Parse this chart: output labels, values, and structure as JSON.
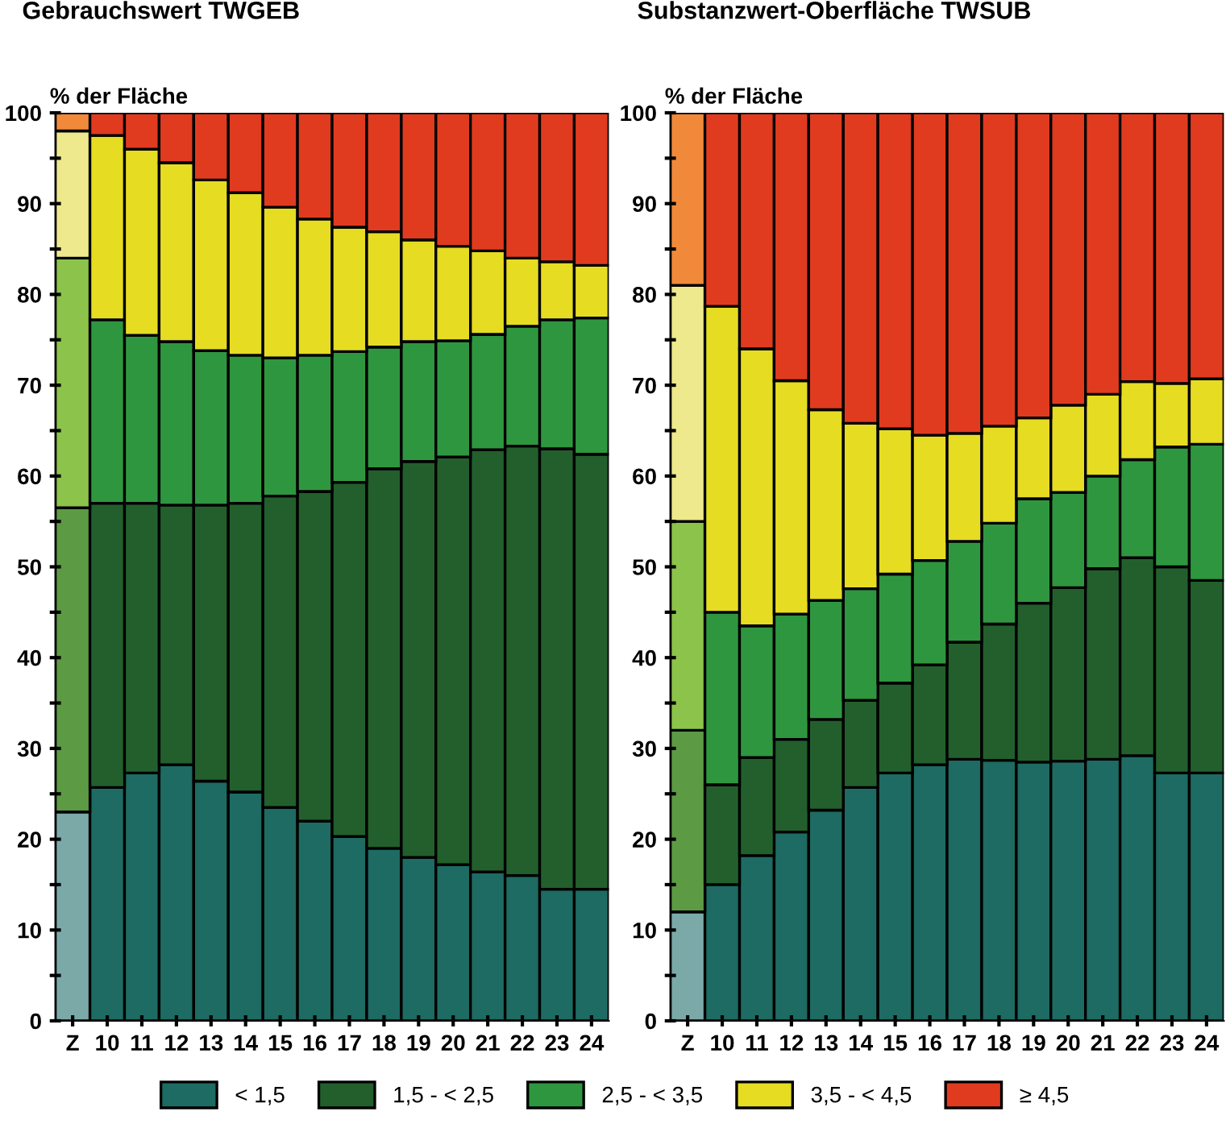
{
  "chart_data": [
    {
      "type": "bar",
      "stacked": true,
      "title": "Gebrauchswert TWGEB",
      "ylabel": "% der Fläche",
      "legend": "bottom",
      "grid": false,
      "categories": [
        "Z",
        "10",
        "11",
        "12",
        "13",
        "14",
        "15",
        "16",
        "17",
        "18",
        "19",
        "20",
        "21",
        "22",
        "23",
        "24"
      ],
      "ylim": [
        0,
        100
      ],
      "yticks": [
        0,
        {
          "value": 5,
          "label": null
        },
        10,
        {
          "value": 15,
          "label": null
        },
        20,
        {
          "value": 25,
          "label": null
        },
        30,
        {
          "value": 35,
          "label": null
        },
        40,
        {
          "value": 45,
          "label": null
        },
        50,
        {
          "value": 55,
          "label": null
        },
        60,
        {
          "value": 65,
          "label": null
        },
        70,
        {
          "value": 75,
          "label": null
        },
        80,
        {
          "value": 85,
          "label": null
        },
        90,
        {
          "value": 95,
          "label": null
        },
        100
      ],
      "series": [
        {
          "name": "< 1,5",
          "color": "#1d6b62",
          "colors": [
            "#7aa9a8",
            "#1d6b62",
            "#1d6b62",
            "#1d6b62",
            "#1d6b62",
            "#1d6b62",
            "#1d6b62",
            "#1d6b62",
            "#1d6b62",
            "#1d6b62",
            "#1d6b62",
            "#1d6b62",
            "#1d6b62",
            "#1d6b62",
            "#1d6b62",
            "#1d6b62"
          ],
          "values": [
            23,
            25.7,
            27.3,
            28.2,
            26.4,
            25.2,
            23.5,
            22,
            20.3,
            19,
            18,
            17.2,
            16.4,
            16,
            14.5,
            14.5
          ]
        },
        {
          "name": "1,5 - < 2,5",
          "color": "#225f2c",
          "colors": [
            "#5c9a44",
            "#225f2c",
            "#225f2c",
            "#225f2c",
            "#225f2c",
            "#225f2c",
            "#225f2c",
            "#225f2c",
            "#225f2c",
            "#225f2c",
            "#225f2c",
            "#225f2c",
            "#225f2c",
            "#225f2c",
            "#225f2c",
            "#225f2c"
          ],
          "values": [
            33.5,
            31.3,
            29.7,
            28.6,
            30.4,
            31.8,
            34.3,
            36.3,
            39,
            41.8,
            43.6,
            44.9,
            46.5,
            47.3,
            48.5,
            47.9
          ]
        },
        {
          "name": "2,5 - < 3,5",
          "color": "#2f9640",
          "colors": [
            "#8cc34a",
            "#2f9640",
            "#2f9640",
            "#2f9640",
            "#2f9640",
            "#2f9640",
            "#2f9640",
            "#2f9640",
            "#2f9640",
            "#2f9640",
            "#2f9640",
            "#2f9640",
            "#2f9640",
            "#2f9640",
            "#2f9640",
            "#2f9640"
          ],
          "values": [
            27.5,
            20.2,
            18.5,
            18,
            17,
            16.3,
            15.2,
            15,
            14.4,
            13.4,
            13.2,
            12.8,
            12.7,
            13.2,
            14.2,
            15
          ]
        },
        {
          "name": "3,5 - < 4,5",
          "color": "#e6dc22",
          "colors": [
            "#ede98c",
            "#e6dc22",
            "#e6dc22",
            "#e6dc22",
            "#e6dc22",
            "#e6dc22",
            "#e6dc22",
            "#e6dc22",
            "#e6dc22",
            "#e6dc22",
            "#e6dc22",
            "#e6dc22",
            "#e6dc22",
            "#e6dc22",
            "#e6dc22",
            "#e6dc22"
          ],
          "values": [
            14,
            20.3,
            20.5,
            19.7,
            18.8,
            17.9,
            16.6,
            15,
            13.7,
            12.7,
            11.2,
            10.4,
            9.2,
            7.5,
            6.4,
            5.8
          ]
        },
        {
          "name": "≥ 4,5",
          "color": "#e03b1f",
          "colors": [
            "#f08a3a",
            "#e03b1f",
            "#e03b1f",
            "#e03b1f",
            "#e03b1f",
            "#e03b1f",
            "#e03b1f",
            "#e03b1f",
            "#e03b1f",
            "#e03b1f",
            "#e03b1f",
            "#e03b1f",
            "#e03b1f",
            "#e03b1f",
            "#e03b1f",
            "#e03b1f"
          ],
          "values": [
            2,
            2.5,
            4,
            5.5,
            7.4,
            8.8,
            10.4,
            11.7,
            12.6,
            13.1,
            14,
            14.7,
            15.2,
            16,
            16.4,
            16.8
          ]
        }
      ]
    },
    {
      "type": "bar",
      "stacked": true,
      "title": "Substanzwert-Oberfläche TWSUB",
      "ylabel": "% der Fläche",
      "grid": false,
      "categories": [
        "Z",
        "10",
        "11",
        "12",
        "13",
        "14",
        "15",
        "16",
        "17",
        "18",
        "19",
        "20",
        "21",
        "22",
        "23",
        "24"
      ],
      "ylim": [
        0,
        100
      ],
      "yticks": [
        0,
        {
          "value": 5,
          "label": null
        },
        10,
        {
          "value": 15,
          "label": null
        },
        20,
        {
          "value": 25,
          "label": null
        },
        30,
        {
          "value": 35,
          "label": null
        },
        40,
        {
          "value": 45,
          "label": null
        },
        50,
        {
          "value": 55,
          "label": null
        },
        60,
        {
          "value": 65,
          "label": null
        },
        70,
        {
          "value": 75,
          "label": null
        },
        80,
        {
          "value": 85,
          "label": null
        },
        90,
        {
          "value": 95,
          "label": null
        },
        100
      ],
      "series": [
        {
          "color": "#1d6b62",
          "colors": [
            "#7aa9a8",
            "#1d6b62",
            "#1d6b62",
            "#1d6b62",
            "#1d6b62",
            "#1d6b62",
            "#1d6b62",
            "#1d6b62",
            "#1d6b62",
            "#1d6b62",
            "#1d6b62",
            "#1d6b62",
            "#1d6b62",
            "#1d6b62",
            "#1d6b62",
            "#1d6b62"
          ],
          "values": [
            12,
            15,
            18.2,
            20.8,
            23.2,
            25.7,
            27.3,
            28.2,
            28.8,
            28.7,
            28.5,
            28.6,
            28.8,
            29.2,
            27.3,
            27.3
          ]
        },
        {
          "color": "#225f2c",
          "colors": [
            "#5c9a44",
            "#225f2c",
            "#225f2c",
            "#225f2c",
            "#225f2c",
            "#225f2c",
            "#225f2c",
            "#225f2c",
            "#225f2c",
            "#225f2c",
            "#225f2c",
            "#225f2c",
            "#225f2c",
            "#225f2c",
            "#225f2c",
            "#225f2c"
          ],
          "values": [
            20,
            11,
            10.8,
            10.2,
            10,
            9.6,
            9.9,
            11,
            12.9,
            15,
            17.5,
            19.1,
            21,
            21.8,
            22.7,
            21.2
          ]
        },
        {
          "color": "#2f9640",
          "colors": [
            "#8cc34a",
            "#2f9640",
            "#2f9640",
            "#2f9640",
            "#2f9640",
            "#2f9640",
            "#2f9640",
            "#2f9640",
            "#2f9640",
            "#2f9640",
            "#2f9640",
            "#2f9640",
            "#2f9640",
            "#2f9640",
            "#2f9640",
            "#2f9640"
          ],
          "values": [
            23,
            19,
            14.5,
            13.8,
            13.1,
            12.3,
            12,
            11.5,
            11.1,
            11.1,
            11.5,
            10.5,
            10.2,
            10.8,
            13.2,
            15
          ]
        },
        {
          "color": "#e6dc22",
          "colors": [
            "#ede98c",
            "#e6dc22",
            "#e6dc22",
            "#e6dc22",
            "#e6dc22",
            "#e6dc22",
            "#e6dc22",
            "#e6dc22",
            "#e6dc22",
            "#e6dc22",
            "#e6dc22",
            "#e6dc22",
            "#e6dc22",
            "#e6dc22",
            "#e6dc22",
            "#e6dc22"
          ],
          "values": [
            26,
            33.7,
            30.5,
            25.7,
            21,
            18.2,
            16,
            13.8,
            11.9,
            10.7,
            8.9,
            9.6,
            9,
            8.6,
            7,
            7.2
          ]
        },
        {
          "color": "#e03b1f",
          "colors": [
            "#f08a3a",
            "#e03b1f",
            "#e03b1f",
            "#e03b1f",
            "#e03b1f",
            "#e03b1f",
            "#e03b1f",
            "#e03b1f",
            "#e03b1f",
            "#e03b1f",
            "#e03b1f",
            "#e03b1f",
            "#e03b1f",
            "#e03b1f",
            "#e03b1f",
            "#e03b1f"
          ],
          "values": [
            19,
            21.3,
            26,
            29.5,
            32.7,
            34.2,
            34.8,
            35.5,
            35.3,
            34.5,
            33.6,
            32.2,
            31,
            29.6,
            29.8,
            29.3
          ]
        }
      ]
    }
  ]
}
